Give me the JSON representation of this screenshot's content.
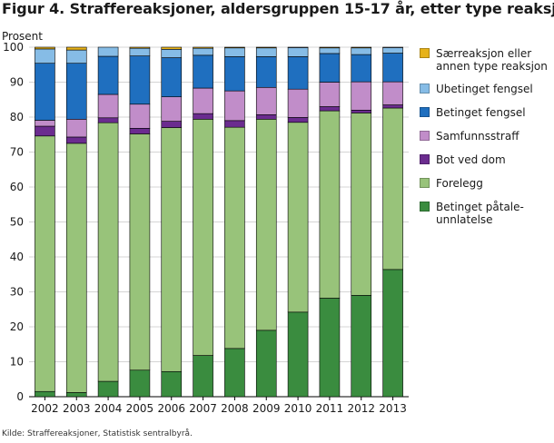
{
  "title": "Figur 4. Straffereaksjoner, aldersgruppen 15-17 år, etter type reaksjon",
  "source": "Kilde: Straffereaksjoner, Statistisk sentralbyrå.",
  "chart_data": {
    "type": "bar",
    "stacked": true,
    "title": "Figur 4. Straffereaksjoner, aldersgruppen 15-17 år, etter type reaksjon",
    "ylabel": "Prosent",
    "xlabel": "",
    "ylim": [
      0,
      100
    ],
    "yticks": [
      0,
      10,
      20,
      30,
      40,
      50,
      60,
      70,
      80,
      90,
      100
    ],
    "grid": "horizontal",
    "legend_position": "right",
    "categories": [
      "2002",
      "2003",
      "2004",
      "2005",
      "2006",
      "2007",
      "2008",
      "2009",
      "2010",
      "2011",
      "2012",
      "2013"
    ],
    "series": [
      {
        "name": "Betinget påtale-\nunnlatelse",
        "color": "#3a8c3f",
        "values": [
          1.5,
          1.2,
          4.4,
          7.6,
          7.2,
          11.8,
          13.8,
          19.0,
          24.2,
          28.2,
          29.0,
          36.4
        ]
      },
      {
        "name": "Forelegg",
        "color": "#98c37a",
        "values": [
          73.1,
          71.3,
          74.0,
          67.6,
          69.8,
          67.6,
          63.3,
          60.4,
          54.3,
          53.6,
          52.2,
          46.2
        ]
      },
      {
        "name": "Bot ved dom",
        "color": "#6b2c8f",
        "values": [
          2.8,
          1.8,
          1.4,
          1.6,
          1.8,
          1.6,
          1.9,
          1.3,
          1.4,
          1.2,
          0.8,
          0.9
        ]
      },
      {
        "name": "Samfunnsstraff",
        "color": "#c18dc9",
        "values": [
          1.7,
          5.1,
          6.7,
          6.9,
          7.0,
          7.3,
          8.5,
          7.8,
          8.1,
          7.0,
          8.1,
          6.6
        ]
      },
      {
        "name": "Betinget fengsel",
        "color": "#1f6fbf",
        "values": [
          16.3,
          16.0,
          10.9,
          13.8,
          11.2,
          9.4,
          9.8,
          8.8,
          9.3,
          8.2,
          7.8,
          8.2
        ]
      },
      {
        "name": "Ubetinget fengsel",
        "color": "#86bce6",
        "values": [
          4.1,
          3.8,
          2.6,
          2.2,
          2.4,
          2.0,
          2.5,
          2.5,
          2.6,
          1.6,
          1.9,
          1.6
        ]
      },
      {
        "name": "Særreaksjon eller\nannen type reaksjon",
        "color": "#e6b21a",
        "values": [
          0.5,
          0.8,
          0.0,
          0.3,
          0.6,
          0.3,
          0.2,
          0.2,
          0.1,
          0.2,
          0.2,
          0.1
        ]
      }
    ]
  }
}
